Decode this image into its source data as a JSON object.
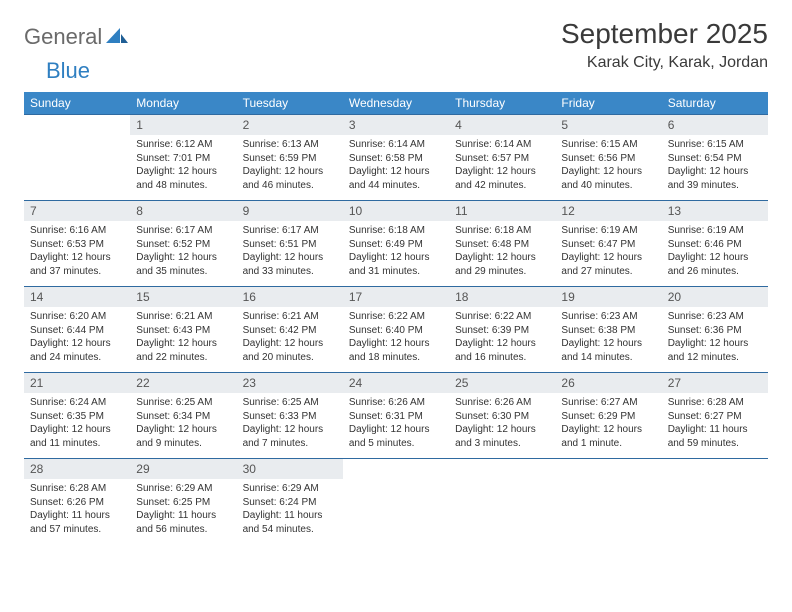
{
  "logo": {
    "part1": "General",
    "part2": "Blue"
  },
  "title": "September 2025",
  "location": "Karak City, Karak, Jordan",
  "colors": {
    "header_bg": "#3a87c7",
    "header_text": "#ffffff",
    "daynum_bg": "#e9ecef",
    "week_border": "#2f6aa0",
    "logo_gray": "#6a6a6a",
    "logo_blue": "#2f7fc1",
    "body_text": "#333333"
  },
  "typography": {
    "month_title_fontsize": 28,
    "location_fontsize": 16,
    "dow_fontsize": 12,
    "daynum_fontsize": 12,
    "body_fontsize": 10
  },
  "days_of_week": [
    "Sunday",
    "Monday",
    "Tuesday",
    "Wednesday",
    "Thursday",
    "Friday",
    "Saturday"
  ],
  "weeks": [
    [
      {
        "n": "",
        "sunrise": "",
        "sunset": "",
        "daylight": ""
      },
      {
        "n": "1",
        "sunrise": "Sunrise: 6:12 AM",
        "sunset": "Sunset: 7:01 PM",
        "daylight": "Daylight: 12 hours and 48 minutes."
      },
      {
        "n": "2",
        "sunrise": "Sunrise: 6:13 AM",
        "sunset": "Sunset: 6:59 PM",
        "daylight": "Daylight: 12 hours and 46 minutes."
      },
      {
        "n": "3",
        "sunrise": "Sunrise: 6:14 AM",
        "sunset": "Sunset: 6:58 PM",
        "daylight": "Daylight: 12 hours and 44 minutes."
      },
      {
        "n": "4",
        "sunrise": "Sunrise: 6:14 AM",
        "sunset": "Sunset: 6:57 PM",
        "daylight": "Daylight: 12 hours and 42 minutes."
      },
      {
        "n": "5",
        "sunrise": "Sunrise: 6:15 AM",
        "sunset": "Sunset: 6:56 PM",
        "daylight": "Daylight: 12 hours and 40 minutes."
      },
      {
        "n": "6",
        "sunrise": "Sunrise: 6:15 AM",
        "sunset": "Sunset: 6:54 PM",
        "daylight": "Daylight: 12 hours and 39 minutes."
      }
    ],
    [
      {
        "n": "7",
        "sunrise": "Sunrise: 6:16 AM",
        "sunset": "Sunset: 6:53 PM",
        "daylight": "Daylight: 12 hours and 37 minutes."
      },
      {
        "n": "8",
        "sunrise": "Sunrise: 6:17 AM",
        "sunset": "Sunset: 6:52 PM",
        "daylight": "Daylight: 12 hours and 35 minutes."
      },
      {
        "n": "9",
        "sunrise": "Sunrise: 6:17 AM",
        "sunset": "Sunset: 6:51 PM",
        "daylight": "Daylight: 12 hours and 33 minutes."
      },
      {
        "n": "10",
        "sunrise": "Sunrise: 6:18 AM",
        "sunset": "Sunset: 6:49 PM",
        "daylight": "Daylight: 12 hours and 31 minutes."
      },
      {
        "n": "11",
        "sunrise": "Sunrise: 6:18 AM",
        "sunset": "Sunset: 6:48 PM",
        "daylight": "Daylight: 12 hours and 29 minutes."
      },
      {
        "n": "12",
        "sunrise": "Sunrise: 6:19 AM",
        "sunset": "Sunset: 6:47 PM",
        "daylight": "Daylight: 12 hours and 27 minutes."
      },
      {
        "n": "13",
        "sunrise": "Sunrise: 6:19 AM",
        "sunset": "Sunset: 6:46 PM",
        "daylight": "Daylight: 12 hours and 26 minutes."
      }
    ],
    [
      {
        "n": "14",
        "sunrise": "Sunrise: 6:20 AM",
        "sunset": "Sunset: 6:44 PM",
        "daylight": "Daylight: 12 hours and 24 minutes."
      },
      {
        "n": "15",
        "sunrise": "Sunrise: 6:21 AM",
        "sunset": "Sunset: 6:43 PM",
        "daylight": "Daylight: 12 hours and 22 minutes."
      },
      {
        "n": "16",
        "sunrise": "Sunrise: 6:21 AM",
        "sunset": "Sunset: 6:42 PM",
        "daylight": "Daylight: 12 hours and 20 minutes."
      },
      {
        "n": "17",
        "sunrise": "Sunrise: 6:22 AM",
        "sunset": "Sunset: 6:40 PM",
        "daylight": "Daylight: 12 hours and 18 minutes."
      },
      {
        "n": "18",
        "sunrise": "Sunrise: 6:22 AM",
        "sunset": "Sunset: 6:39 PM",
        "daylight": "Daylight: 12 hours and 16 minutes."
      },
      {
        "n": "19",
        "sunrise": "Sunrise: 6:23 AM",
        "sunset": "Sunset: 6:38 PM",
        "daylight": "Daylight: 12 hours and 14 minutes."
      },
      {
        "n": "20",
        "sunrise": "Sunrise: 6:23 AM",
        "sunset": "Sunset: 6:36 PM",
        "daylight": "Daylight: 12 hours and 12 minutes."
      }
    ],
    [
      {
        "n": "21",
        "sunrise": "Sunrise: 6:24 AM",
        "sunset": "Sunset: 6:35 PM",
        "daylight": "Daylight: 12 hours and 11 minutes."
      },
      {
        "n": "22",
        "sunrise": "Sunrise: 6:25 AM",
        "sunset": "Sunset: 6:34 PM",
        "daylight": "Daylight: 12 hours and 9 minutes."
      },
      {
        "n": "23",
        "sunrise": "Sunrise: 6:25 AM",
        "sunset": "Sunset: 6:33 PM",
        "daylight": "Daylight: 12 hours and 7 minutes."
      },
      {
        "n": "24",
        "sunrise": "Sunrise: 6:26 AM",
        "sunset": "Sunset: 6:31 PM",
        "daylight": "Daylight: 12 hours and 5 minutes."
      },
      {
        "n": "25",
        "sunrise": "Sunrise: 6:26 AM",
        "sunset": "Sunset: 6:30 PM",
        "daylight": "Daylight: 12 hours and 3 minutes."
      },
      {
        "n": "26",
        "sunrise": "Sunrise: 6:27 AM",
        "sunset": "Sunset: 6:29 PM",
        "daylight": "Daylight: 12 hours and 1 minute."
      },
      {
        "n": "27",
        "sunrise": "Sunrise: 6:28 AM",
        "sunset": "Sunset: 6:27 PM",
        "daylight": "Daylight: 11 hours and 59 minutes."
      }
    ],
    [
      {
        "n": "28",
        "sunrise": "Sunrise: 6:28 AM",
        "sunset": "Sunset: 6:26 PM",
        "daylight": "Daylight: 11 hours and 57 minutes."
      },
      {
        "n": "29",
        "sunrise": "Sunrise: 6:29 AM",
        "sunset": "Sunset: 6:25 PM",
        "daylight": "Daylight: 11 hours and 56 minutes."
      },
      {
        "n": "30",
        "sunrise": "Sunrise: 6:29 AM",
        "sunset": "Sunset: 6:24 PM",
        "daylight": "Daylight: 11 hours and 54 minutes."
      },
      {
        "n": "",
        "sunrise": "",
        "sunset": "",
        "daylight": ""
      },
      {
        "n": "",
        "sunrise": "",
        "sunset": "",
        "daylight": ""
      },
      {
        "n": "",
        "sunrise": "",
        "sunset": "",
        "daylight": ""
      },
      {
        "n": "",
        "sunrise": "",
        "sunset": "",
        "daylight": ""
      }
    ]
  ]
}
